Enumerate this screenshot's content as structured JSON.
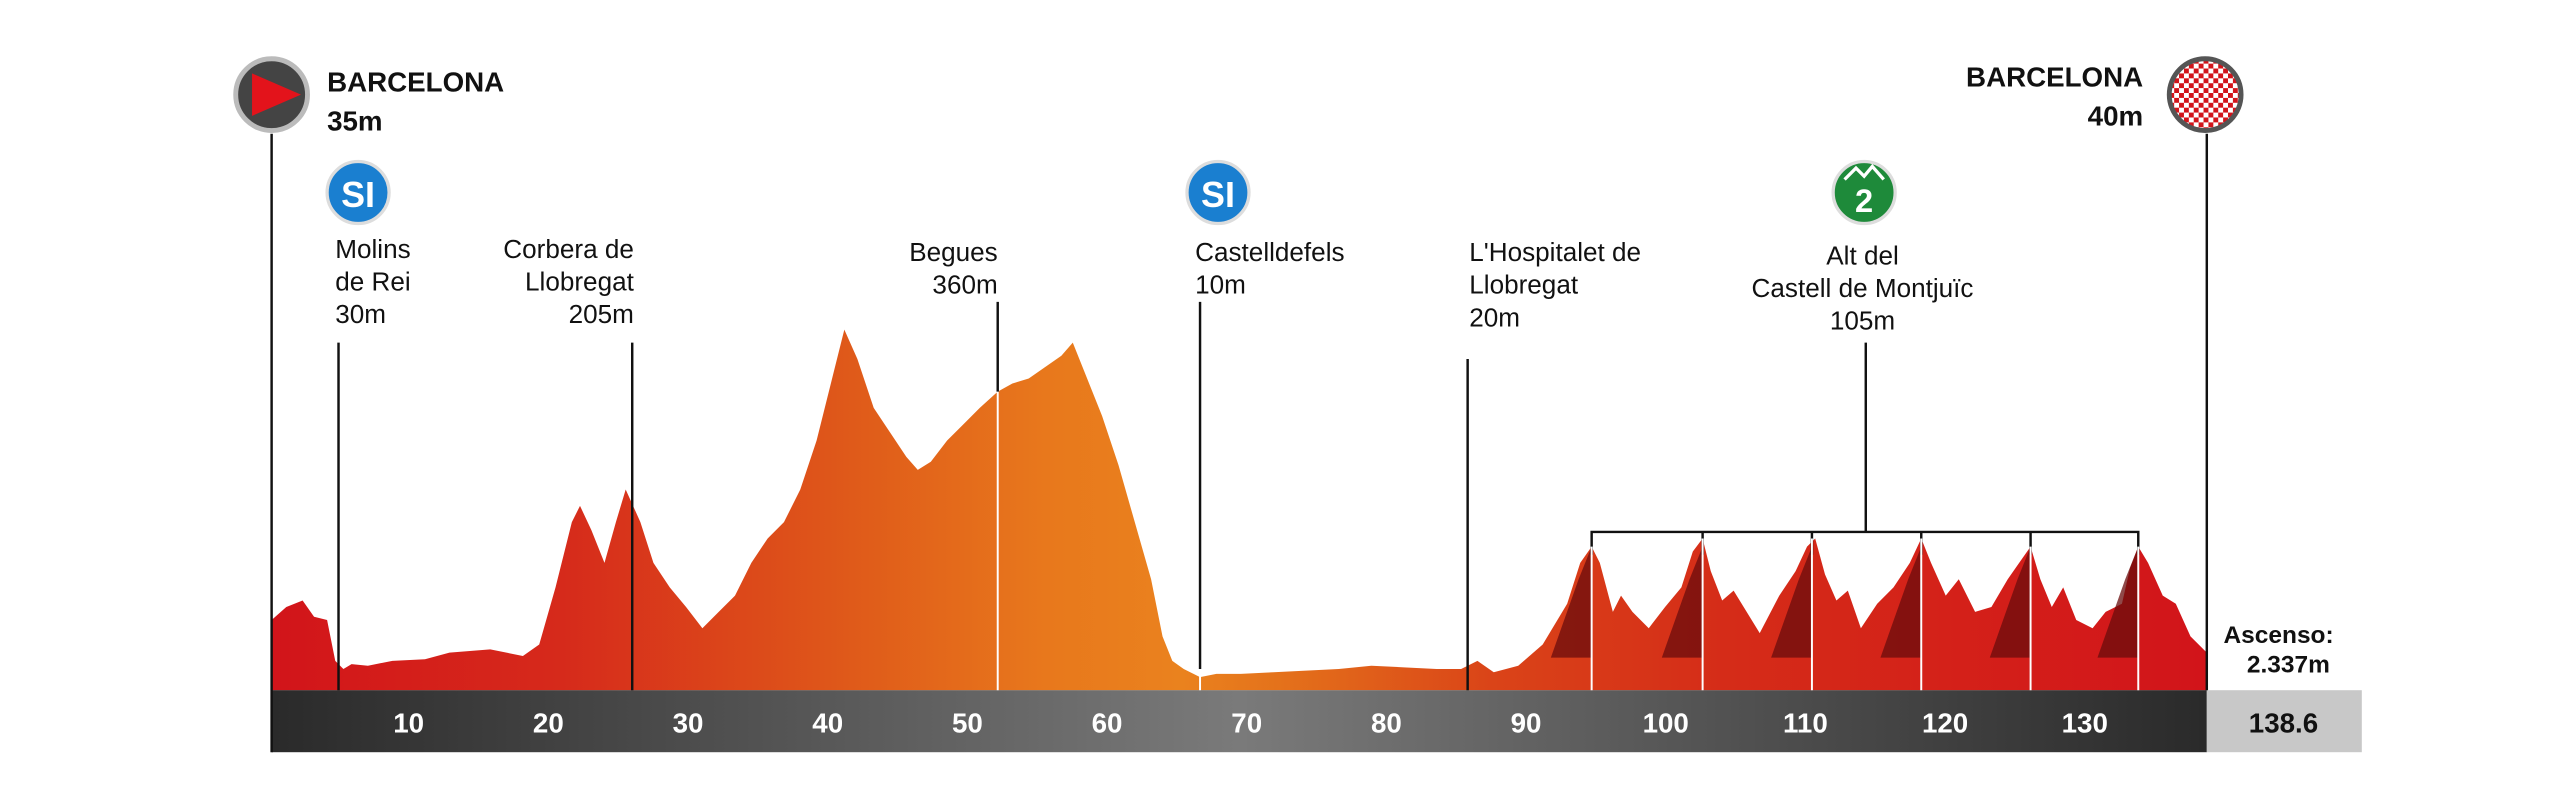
{
  "start": {
    "name": "BARCELONA",
    "altitude": "35m"
  },
  "finish": {
    "name": "BARCELONA",
    "altitude": "40m"
  },
  "waypoints": [
    {
      "badge": "SI",
      "lines": [
        "Molins",
        "de Rei",
        "30m"
      ]
    },
    {
      "lines": [
        "Corbera de",
        "Llobregat",
        "205m"
      ]
    },
    {
      "lines": [
        "Begues",
        "360m"
      ]
    },
    {
      "badge": "SI",
      "lines": [
        "Castelldefels",
        "10m"
      ]
    },
    {
      "lines": [
        "L'Hospitalet de",
        "Llobregat",
        "20m"
      ]
    },
    {
      "badge": "2",
      "lines": [
        "Alt del",
        "Castell de Montjuïc",
        "105m"
      ]
    }
  ],
  "distance_ticks": [
    10,
    20,
    30,
    40,
    50,
    60,
    70,
    80,
    90,
    100,
    110,
    120,
    130
  ],
  "total_distance": "138.6",
  "ascent": {
    "label": "Ascenso:",
    "value": "2.337m"
  }
}
